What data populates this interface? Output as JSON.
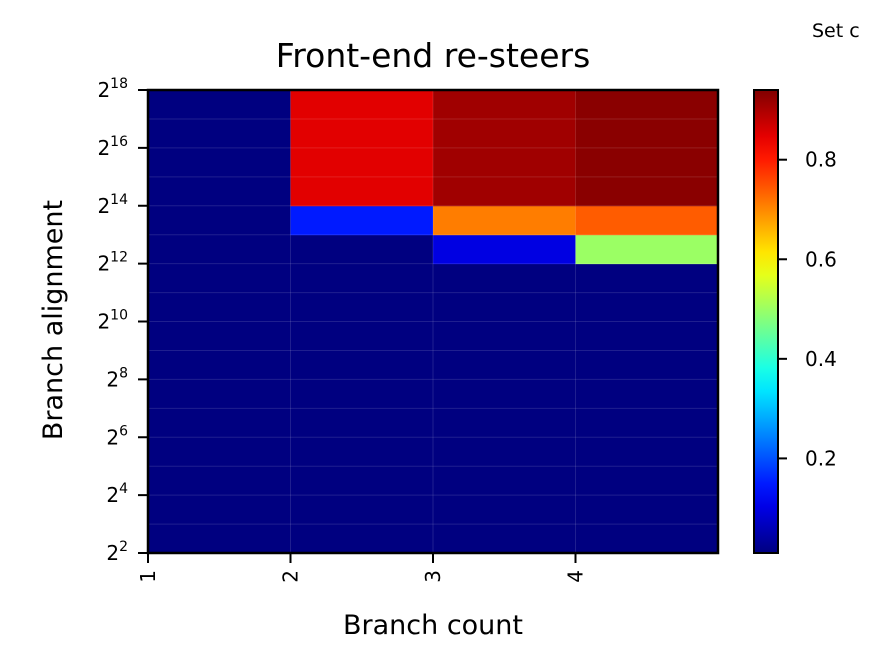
{
  "corner_note": "Set c",
  "chart_data": {
    "type": "heatmap",
    "title": "Front-end re-steers",
    "xlabel": "Branch count",
    "ylabel": "Branch alignment",
    "x_ticks": [
      "1",
      "2",
      "3",
      "4"
    ],
    "x_columns": [
      1,
      2,
      3,
      4
    ],
    "y_exponents": [
      2,
      3,
      4,
      5,
      6,
      7,
      8,
      9,
      10,
      11,
      12,
      13,
      14,
      15,
      16,
      17
    ],
    "y_tick_exponents": [
      2,
      4,
      6,
      8,
      10,
      12,
      14,
      16,
      18
    ],
    "y_tick_base": "2",
    "colormap": "jet",
    "colorbar_range": [
      0.01,
      0.94
    ],
    "colorbar_ticks": [
      "0.2",
      "0.4",
      "0.6",
      "0.8"
    ],
    "colorbar_tick_values": [
      0.2,
      0.4,
      0.6,
      0.8
    ],
    "values": [
      [
        0.01,
        0.01,
        0.01,
        0.01
      ],
      [
        0.01,
        0.01,
        0.01,
        0.01
      ],
      [
        0.01,
        0.01,
        0.01,
        0.01
      ],
      [
        0.01,
        0.01,
        0.01,
        0.01
      ],
      [
        0.01,
        0.01,
        0.01,
        0.01
      ],
      [
        0.01,
        0.01,
        0.01,
        0.01
      ],
      [
        0.01,
        0.01,
        0.01,
        0.01
      ],
      [
        0.01,
        0.01,
        0.01,
        0.01
      ],
      [
        0.01,
        0.01,
        0.01,
        0.01
      ],
      [
        0.01,
        0.01,
        0.01,
        0.01
      ],
      [
        0.01,
        0.01,
        0.1,
        0.5
      ],
      [
        0.01,
        0.15,
        0.71,
        0.74
      ],
      [
        0.01,
        0.85,
        0.91,
        0.93
      ],
      [
        0.01,
        0.85,
        0.91,
        0.93
      ],
      [
        0.01,
        0.85,
        0.91,
        0.93
      ],
      [
        0.01,
        0.85,
        0.91,
        0.93
      ]
    ]
  }
}
